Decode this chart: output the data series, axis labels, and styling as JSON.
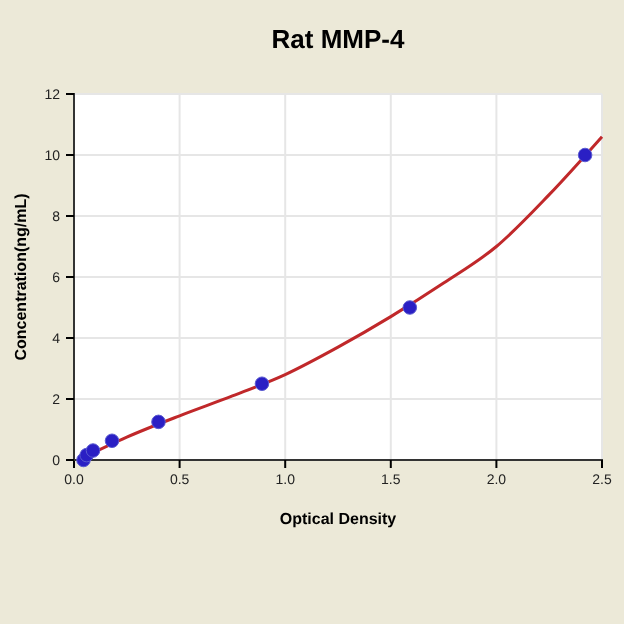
{
  "chart_data": {
    "type": "scatter",
    "title": "Rat MMP-4",
    "xlabel": "Optical Density",
    "ylabel": "Concentration(ng/mL)",
    "xlim": [
      0,
      2.5
    ],
    "xticks": [
      {
        "value": 0,
        "label": "0.0"
      },
      {
        "value": 0.5,
        "label": "0.5"
      },
      {
        "value": 1,
        "label": "1.0"
      },
      {
        "value": 1.5,
        "label": "1.5"
      },
      {
        "value": 2,
        "label": "2.0"
      },
      {
        "value": 2.5,
        "label": "2.5"
      }
    ],
    "ylim": [
      0,
      12
    ],
    "yticks": [
      0,
      2,
      4,
      6,
      8,
      10,
      12
    ],
    "grid": true,
    "marker": "circle",
    "series": [
      {
        "type": "line",
        "color": "#c0282a",
        "marker": "none",
        "x": [
          0.02,
          0.25,
          0.5,
          0.75,
          1,
          1.25,
          1.5,
          1.75,
          2,
          2.25,
          2.5
        ],
        "values": [
          0,
          0.75,
          1.45,
          2.1,
          2.8,
          3.7,
          4.7,
          5.8,
          7.0,
          8.7,
          10.6
        ]
      },
      {
        "type": "scatter",
        "color": "#2a1fc4",
        "x": [
          0.045,
          0.06,
          0.09,
          0.18,
          0.4,
          0.89,
          1.59,
          2.42
        ],
        "values": [
          0,
          0.16,
          0.31,
          0.63,
          1.25,
          2.5,
          5,
          10
        ]
      }
    ]
  }
}
